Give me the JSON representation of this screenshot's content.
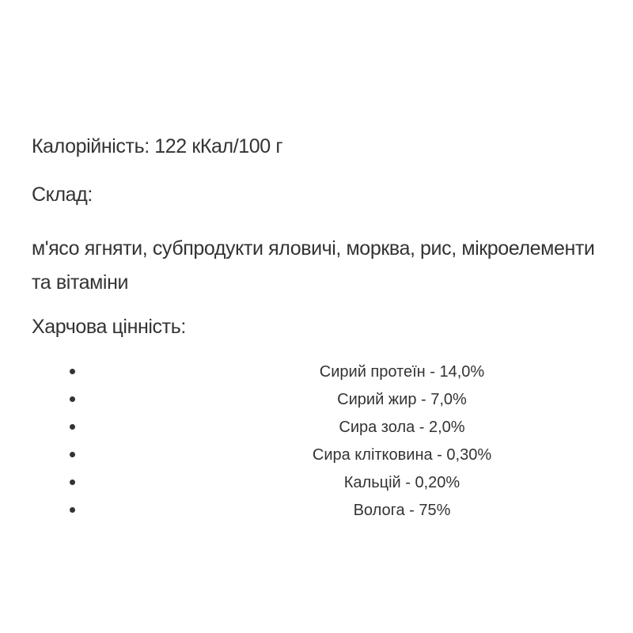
{
  "calories": "Калорійність: 122 кКал/100 г",
  "composition_label": "Склад:",
  "composition_text": "м'ясо ягняти, субпродукти яловичі, морква, рис, мікроелементи та вітаміни",
  "nutrition_label": "Харчова цінність:",
  "nutrition_items": [
    "Сирий протеїн - 14,0%",
    "Сирий жир - 7,0%",
    "Сира зола - 2,0%",
    "Сира клітковина - 0,30%",
    "Кальцій - 0,20%",
    "Волога - 75%"
  ]
}
